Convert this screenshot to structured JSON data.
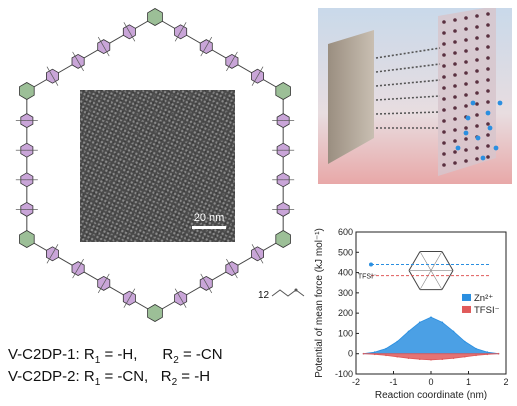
{
  "figure": {
    "scale_bar": "20 nm",
    "repeat_unit_label": "12",
    "formulas": [
      {
        "name": "V-C2DP-1:",
        "r1_label": "R",
        "r1_sub": "1",
        "r1_value": " = -H,",
        "r2_label": "R",
        "r2_sub": "2",
        "r2_value": " = -CN"
      },
      {
        "name": "V-C2DP-2:",
        "r1_label": "R",
        "r1_sub": "1",
        "r1_value": " = -CN,",
        "r2_label": "R",
        "r2_sub": "2",
        "r2_value": " = -H"
      }
    ],
    "inset_labels": {
      "zn": "Zn²⁺",
      "tfsi": "TFSI⁻"
    }
  },
  "colors": {
    "benzene_purple": "#c9a5d8",
    "pyridine_green": "#9cbf97",
    "zn_blue": "#2b8fe0",
    "tfsi_red": "#e05a5a"
  },
  "chart_data": {
    "type": "area",
    "title": "",
    "xlabel": "Reaction coordinate (nm)",
    "ylabel": "Potential of mean force (kJ mol⁻¹)",
    "xlim": [
      -2,
      2
    ],
    "ylim": [
      -100,
      600
    ],
    "xticks": [
      -2,
      -1,
      0,
      1,
      2
    ],
    "yticks": [
      -100,
      0,
      100,
      200,
      300,
      400,
      500,
      600
    ],
    "legend_position": "right",
    "series": [
      {
        "name": "Zn²⁺",
        "color": "#2b8fe0",
        "x": [
          -1.8,
          -1.5,
          -1.2,
          -0.9,
          -0.6,
          -0.3,
          0.0,
          0.3,
          0.6,
          0.9,
          1.2,
          1.5,
          1.8
        ],
        "y": [
          0,
          8,
          25,
          60,
          110,
          155,
          180,
          155,
          110,
          60,
          25,
          8,
          0
        ]
      },
      {
        "name": "TFSI⁻",
        "color": "#e05a5a",
        "x": [
          -1.8,
          -1.5,
          -1.2,
          -0.9,
          -0.6,
          -0.3,
          0.0,
          0.3,
          0.6,
          0.9,
          1.2,
          1.5,
          1.8
        ],
        "y": [
          0,
          -3,
          -8,
          -15,
          -22,
          -27,
          -30,
          -27,
          -22,
          -15,
          -8,
          -3,
          0
        ]
      }
    ]
  }
}
